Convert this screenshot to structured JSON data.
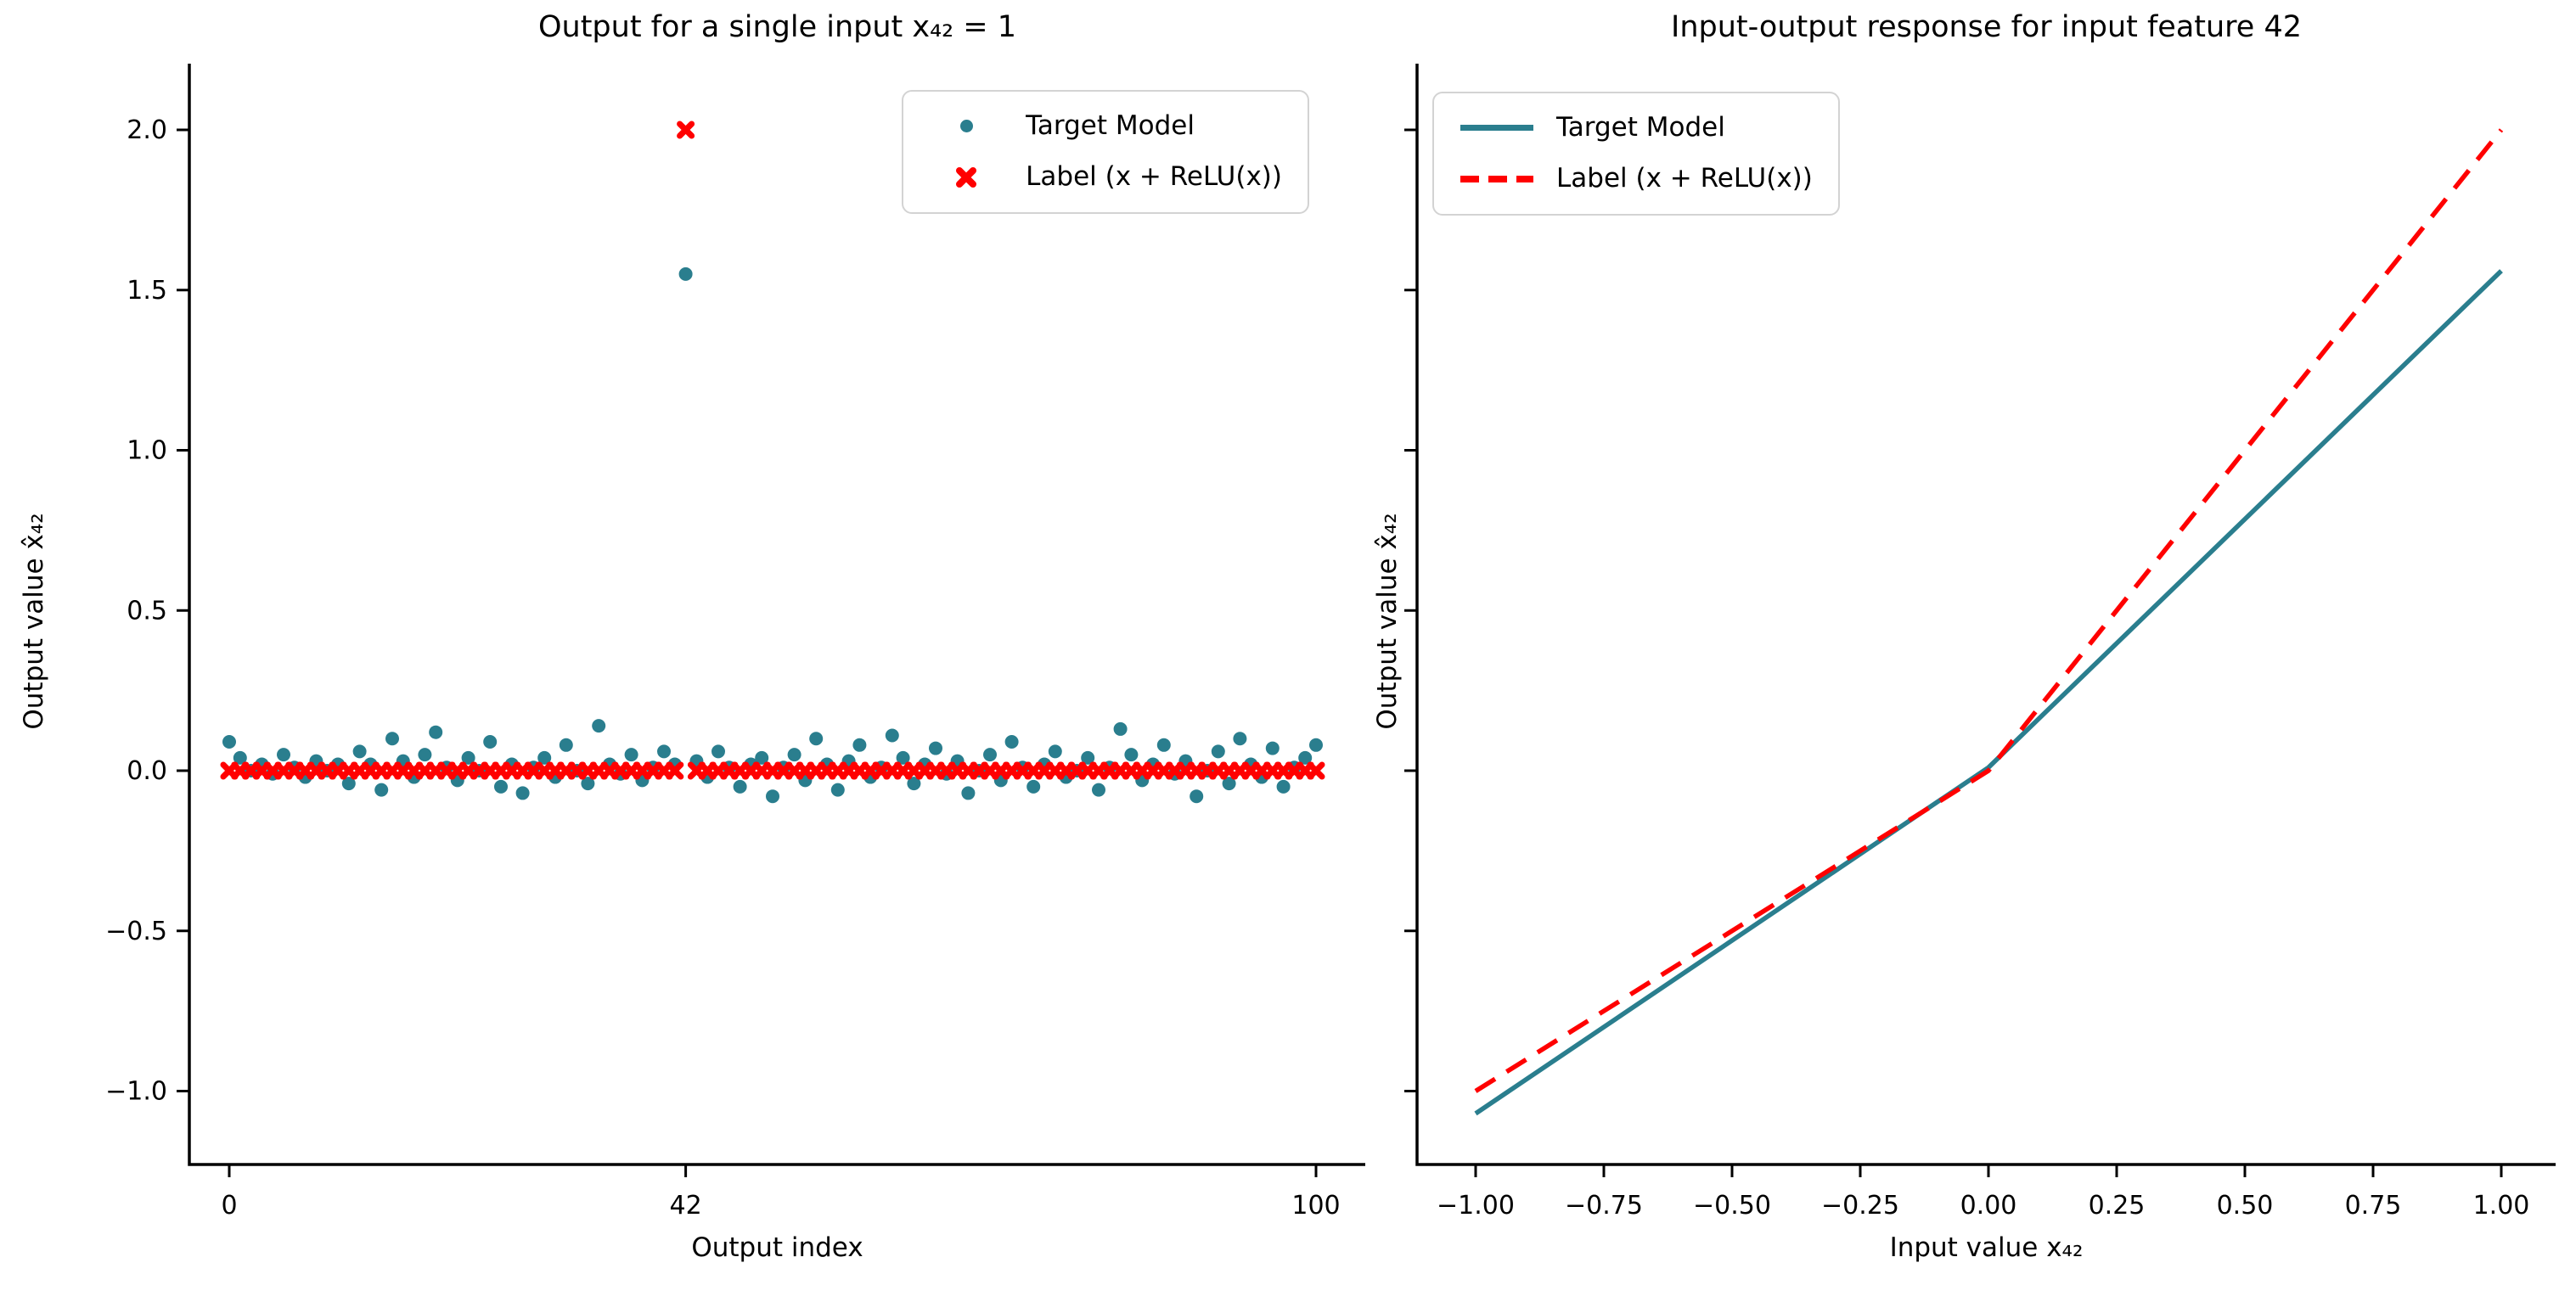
{
  "figure": {
    "background": "#ffffff",
    "text_color": "#000000"
  },
  "colors": {
    "target_model": "#2a7e8e",
    "label_line": "#ff0000",
    "legend_border": "#d3d3d3",
    "axis": "#000000"
  },
  "chart_data": [
    {
      "type": "scatter",
      "title": "Output for a single input x₄₂ = 1",
      "xlabel": "Output index",
      "ylabel": "Output value x̂₄₂",
      "xlim": [
        -5.5,
        106
      ],
      "ylim": [
        -1.24,
        2.21
      ],
      "grid": false,
      "legend_position": "upper right",
      "xticks": {
        "values": [
          0,
          42,
          100
        ],
        "labels": [
          "0",
          "42",
          "100"
        ]
      },
      "yticks": {
        "values": [
          2.0,
          1.5,
          1.0,
          0.5,
          0.0,
          -0.5,
          -1.0
        ],
        "labels": [
          "2.0",
          "1.5",
          "1.0",
          "0.5",
          "0.0",
          "−0.5",
          "−1.0"
        ]
      },
      "series": [
        {
          "name": "Target Model",
          "marker": "circle",
          "color": "#2a7e8e",
          "x_range": [
            0,
            100
          ],
          "y": [
            0.09,
            0.04,
            0.0,
            0.02,
            -0.01,
            0.05,
            0.01,
            -0.02,
            0.03,
            0.0,
            0.02,
            -0.04,
            0.06,
            0.02,
            -0.06,
            0.1,
            0.03,
            -0.02,
            0.05,
            0.12,
            0.01,
            -0.03,
            0.04,
            0.0,
            0.09,
            -0.05,
            0.02,
            -0.07,
            0.01,
            0.04,
            -0.02,
            0.08,
            0.0,
            -0.04,
            0.14,
            0.02,
            -0.01,
            0.05,
            -0.03,
            0.01,
            0.06,
            0.02,
            1.55,
            0.03,
            -0.02,
            0.06,
            0.01,
            -0.05,
            0.02,
            0.04,
            -0.08,
            0.01,
            0.05,
            -0.03,
            0.1,
            0.02,
            -0.06,
            0.03,
            0.08,
            -0.02,
            0.01,
            0.11,
            0.04,
            -0.04,
            0.02,
            0.07,
            -0.01,
            0.03,
            -0.07,
            0.0,
            0.05,
            -0.03,
            0.09,
            0.01,
            -0.05,
            0.02,
            0.06,
            -0.02,
            0.0,
            0.04,
            -0.06,
            0.01,
            0.13,
            0.05,
            -0.03,
            0.02,
            0.08,
            -0.01,
            0.03,
            -0.08,
            0.0,
            0.06,
            -0.04,
            0.1,
            0.02,
            -0.02,
            0.07,
            -0.05,
            0.01,
            0.04,
            0.08
          ]
        },
        {
          "name": "Label (x + ReLU(x))",
          "marker": "X",
          "color": "#ff0000",
          "x_range": [
            0,
            100
          ],
          "y": [
            0,
            0,
            0,
            0,
            0,
            0,
            0,
            0,
            0,
            0,
            0,
            0,
            0,
            0,
            0,
            0,
            0,
            0,
            0,
            0,
            0,
            0,
            0,
            0,
            0,
            0,
            0,
            0,
            0,
            0,
            0,
            0,
            0,
            0,
            0,
            0,
            0,
            0,
            0,
            0,
            0,
            0,
            2.0,
            0,
            0,
            0,
            0,
            0,
            0,
            0,
            0,
            0,
            0,
            0,
            0,
            0,
            0,
            0,
            0,
            0,
            0,
            0,
            0,
            0,
            0,
            0,
            0,
            0,
            0,
            0,
            0,
            0,
            0,
            0,
            0,
            0,
            0,
            0,
            0,
            0,
            0,
            0,
            0,
            0,
            0,
            0,
            0,
            0,
            0,
            0,
            0,
            0,
            0,
            0,
            0,
            0,
            0,
            0,
            0,
            0,
            0
          ]
        }
      ]
    },
    {
      "type": "line",
      "title": "Input-output response for input feature 42",
      "xlabel": "Input value x₄₂",
      "ylabel": "Output value x̂₄₂",
      "xlim": [
        -1.11,
        1.11
      ],
      "ylim": [
        -1.24,
        2.21
      ],
      "grid": false,
      "legend_position": "upper left",
      "xticks": {
        "values": [
          -1.0,
          -0.75,
          -0.5,
          -0.25,
          0.0,
          0.25,
          0.5,
          0.75,
          1.0
        ],
        "labels": [
          "−1.00",
          "−0.75",
          "−0.50",
          "−0.25",
          "0.00",
          "0.25",
          "0.50",
          "0.75",
          "1.00"
        ]
      },
      "yticks": {
        "values": [
          2.0,
          1.5,
          1.0,
          0.5,
          0.0,
          -0.5,
          -1.0
        ],
        "labels": [
          "",
          "",
          "",
          "",
          "",
          "",
          ""
        ]
      },
      "series": [
        {
          "name": "Target Model",
          "style": "solid",
          "color": "#2a7e8e",
          "x": [
            -1.0,
            0.0,
            1.0
          ],
          "y": [
            -1.07,
            0.01,
            1.56
          ]
        },
        {
          "name": "Label (x + ReLU(x))",
          "style": "dashed",
          "color": "#ff0000",
          "x": [
            -1.0,
            0.0,
            1.0
          ],
          "y": [
            -1.0,
            0.0,
            2.0
          ]
        }
      ]
    }
  ]
}
